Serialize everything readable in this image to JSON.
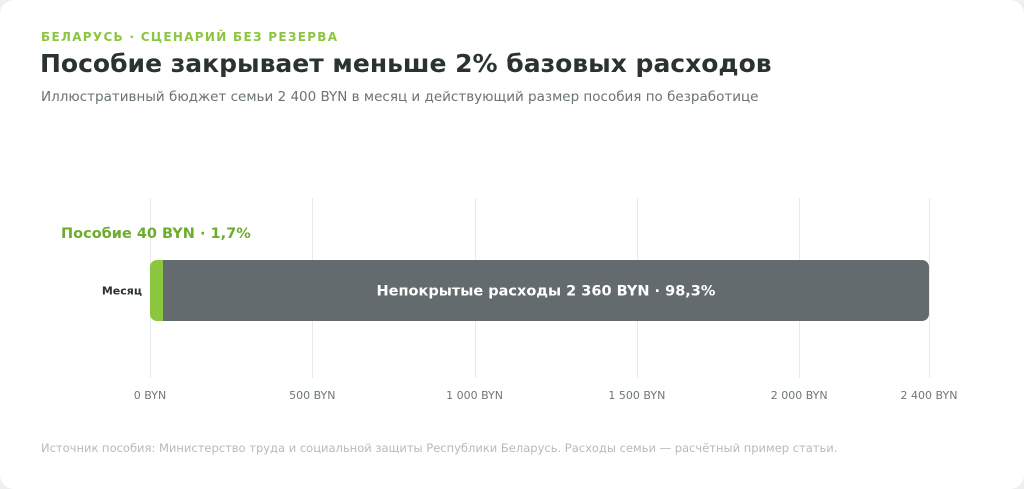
{
  "header": {
    "eyebrow": "БЕЛАРУСЬ · СЦЕНАРИЙ БЕЗ РЕЗЕРВА",
    "title": "Пособие закрывает меньше 2% базовых расходов",
    "subtitle": "Иллюстративный бюджет семьи 2 400 BYN в месяц и действующий размер пособия по безработице"
  },
  "footer": {
    "source": "Источник пособия: Министерство труда и социальной защиты Республики Беларусь. Расходы семьи — расчётный пример статьи."
  },
  "colors": {
    "benefit": "#8cc63f",
    "uncovered": "#636b6e",
    "accent": "#8cc63f"
  },
  "chart_data": {
    "type": "bar",
    "orientation": "horizontal",
    "stacked": true,
    "categories": [
      "Месяц"
    ],
    "series": [
      {
        "name": "Пособие",
        "values": [
          40
        ],
        "label": "Пособие 40 BYN · 1,7%"
      },
      {
        "name": "Непокрытые расходы",
        "values": [
          2360
        ],
        "label": "Непокрытые расходы 2 360 BYN · 98,3%"
      }
    ],
    "xlim": [
      0,
      2400
    ],
    "xticks": [
      0,
      500,
      1000,
      1500,
      2000,
      2400
    ],
    "xtick_labels": [
      "0 BYN",
      "500 BYN",
      "1 000 BYN",
      "1 500 BYN",
      "2 000 BYN",
      "2 400 BYN"
    ],
    "grid": true,
    "legend": "none"
  }
}
